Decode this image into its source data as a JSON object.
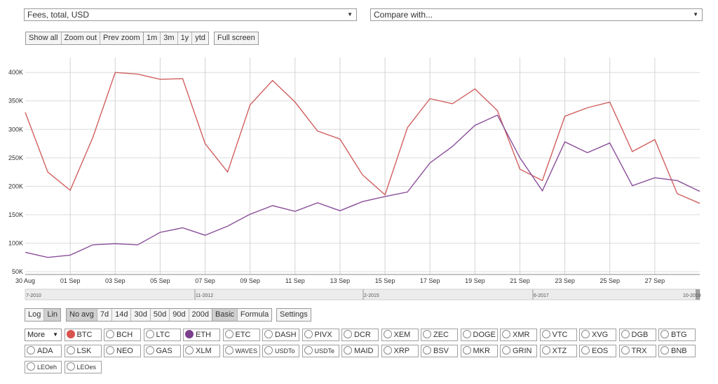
{
  "selectors": {
    "metric": "Fees, total, USD",
    "compare": "Compare with..."
  },
  "zoom_buttons": [
    "Show all",
    "Zoom out",
    "Prev zoom"
  ],
  "range_buttons": [
    "1m",
    "3m",
    "1y",
    "ytd"
  ],
  "fullscreen_label": "Full screen",
  "scale_buttons": [
    "Log",
    "Lin"
  ],
  "avg_buttons": [
    "No avg",
    "7d",
    "14d",
    "30d",
    "50d",
    "90d",
    "200d"
  ],
  "mode_buttons": [
    "Basic",
    "Formula"
  ],
  "settings_label": "Settings",
  "more_label": "More",
  "colors": {
    "btc": "#d9534f",
    "eth": "#7b3f8c",
    "btc_line": "#d06060",
    "eth_line": "#8a4f9a"
  },
  "coins_row1": [
    "BTC",
    "BCH",
    "LTC",
    "ETH",
    "ETC",
    "DASH",
    "PIVX",
    "DCR",
    "XEM",
    "ZEC",
    "DOGE",
    "XMR",
    "VTC",
    "XVG",
    "DGB",
    "BTG"
  ],
  "coins_row2": [
    "ADA",
    "LSK",
    "NEO",
    "GAS",
    "XLM",
    "WAVES",
    "USDTo",
    "USDTe",
    "MAID",
    "XRP",
    "BSV",
    "MKR",
    "GRIN",
    "XTZ",
    "EOS",
    "TRX",
    "BNB"
  ],
  "coins_row3": [
    "LEOeh",
    "LEOes"
  ],
  "chart_data": {
    "type": "line",
    "x": [
      "30 Aug",
      "31 Aug",
      "01 Sep",
      "02 Sep",
      "03 Sep",
      "04 Sep",
      "05 Sep",
      "06 Sep",
      "07 Sep",
      "08 Sep",
      "09 Sep",
      "10 Sep",
      "11 Sep",
      "12 Sep",
      "13 Sep",
      "14 Sep",
      "15 Sep",
      "16 Sep",
      "17 Sep",
      "18 Sep",
      "19 Sep",
      "20 Sep",
      "21 Sep",
      "22 Sep",
      "23 Sep",
      "24 Sep",
      "25 Sep",
      "26 Sep",
      "27 Sep",
      "28 Sep",
      "29 Sep"
    ],
    "x_tick_labels": [
      "30 Aug",
      "01 Sep",
      "03 Sep",
      "05 Sep",
      "07 Sep",
      "09 Sep",
      "11 Sep",
      "13 Sep",
      "15 Sep",
      "17 Sep",
      "19 Sep",
      "21 Sep",
      "23 Sep",
      "25 Sep",
      "27 Sep"
    ],
    "y_tick_labels": [
      "50K",
      "100K",
      "150K",
      "200K",
      "250K",
      "300K",
      "350K",
      "400K"
    ],
    "ylim": [
      45000,
      420000
    ],
    "grid": true,
    "series": [
      {
        "name": "BTC",
        "values": [
          330000,
          225000,
          193000,
          285000,
          400000,
          397000,
          388000,
          389000,
          275000,
          225000,
          343000,
          386000,
          348000,
          297000,
          283000,
          220000,
          185000,
          303000,
          354000,
          345000,
          371000,
          333000,
          230000,
          210000,
          323000,
          338000,
          348000,
          261000,
          282000,
          187000,
          170000
        ]
      },
      {
        "name": "ETH",
        "values": [
          84000,
          75000,
          79000,
          97000,
          99000,
          97000,
          119000,
          127000,
          114000,
          130000,
          151000,
          166000,
          156000,
          171000,
          157000,
          173000,
          182000,
          190000,
          241000,
          270000,
          307000,
          325000,
          250000,
          192000,
          278000,
          259000,
          276000,
          201000,
          215000,
          210000,
          191000
        ]
      }
    ],
    "navigator_labels": [
      "7-2010",
      "11-2012",
      "2-2015",
      "6-2017",
      "10-2019"
    ]
  }
}
